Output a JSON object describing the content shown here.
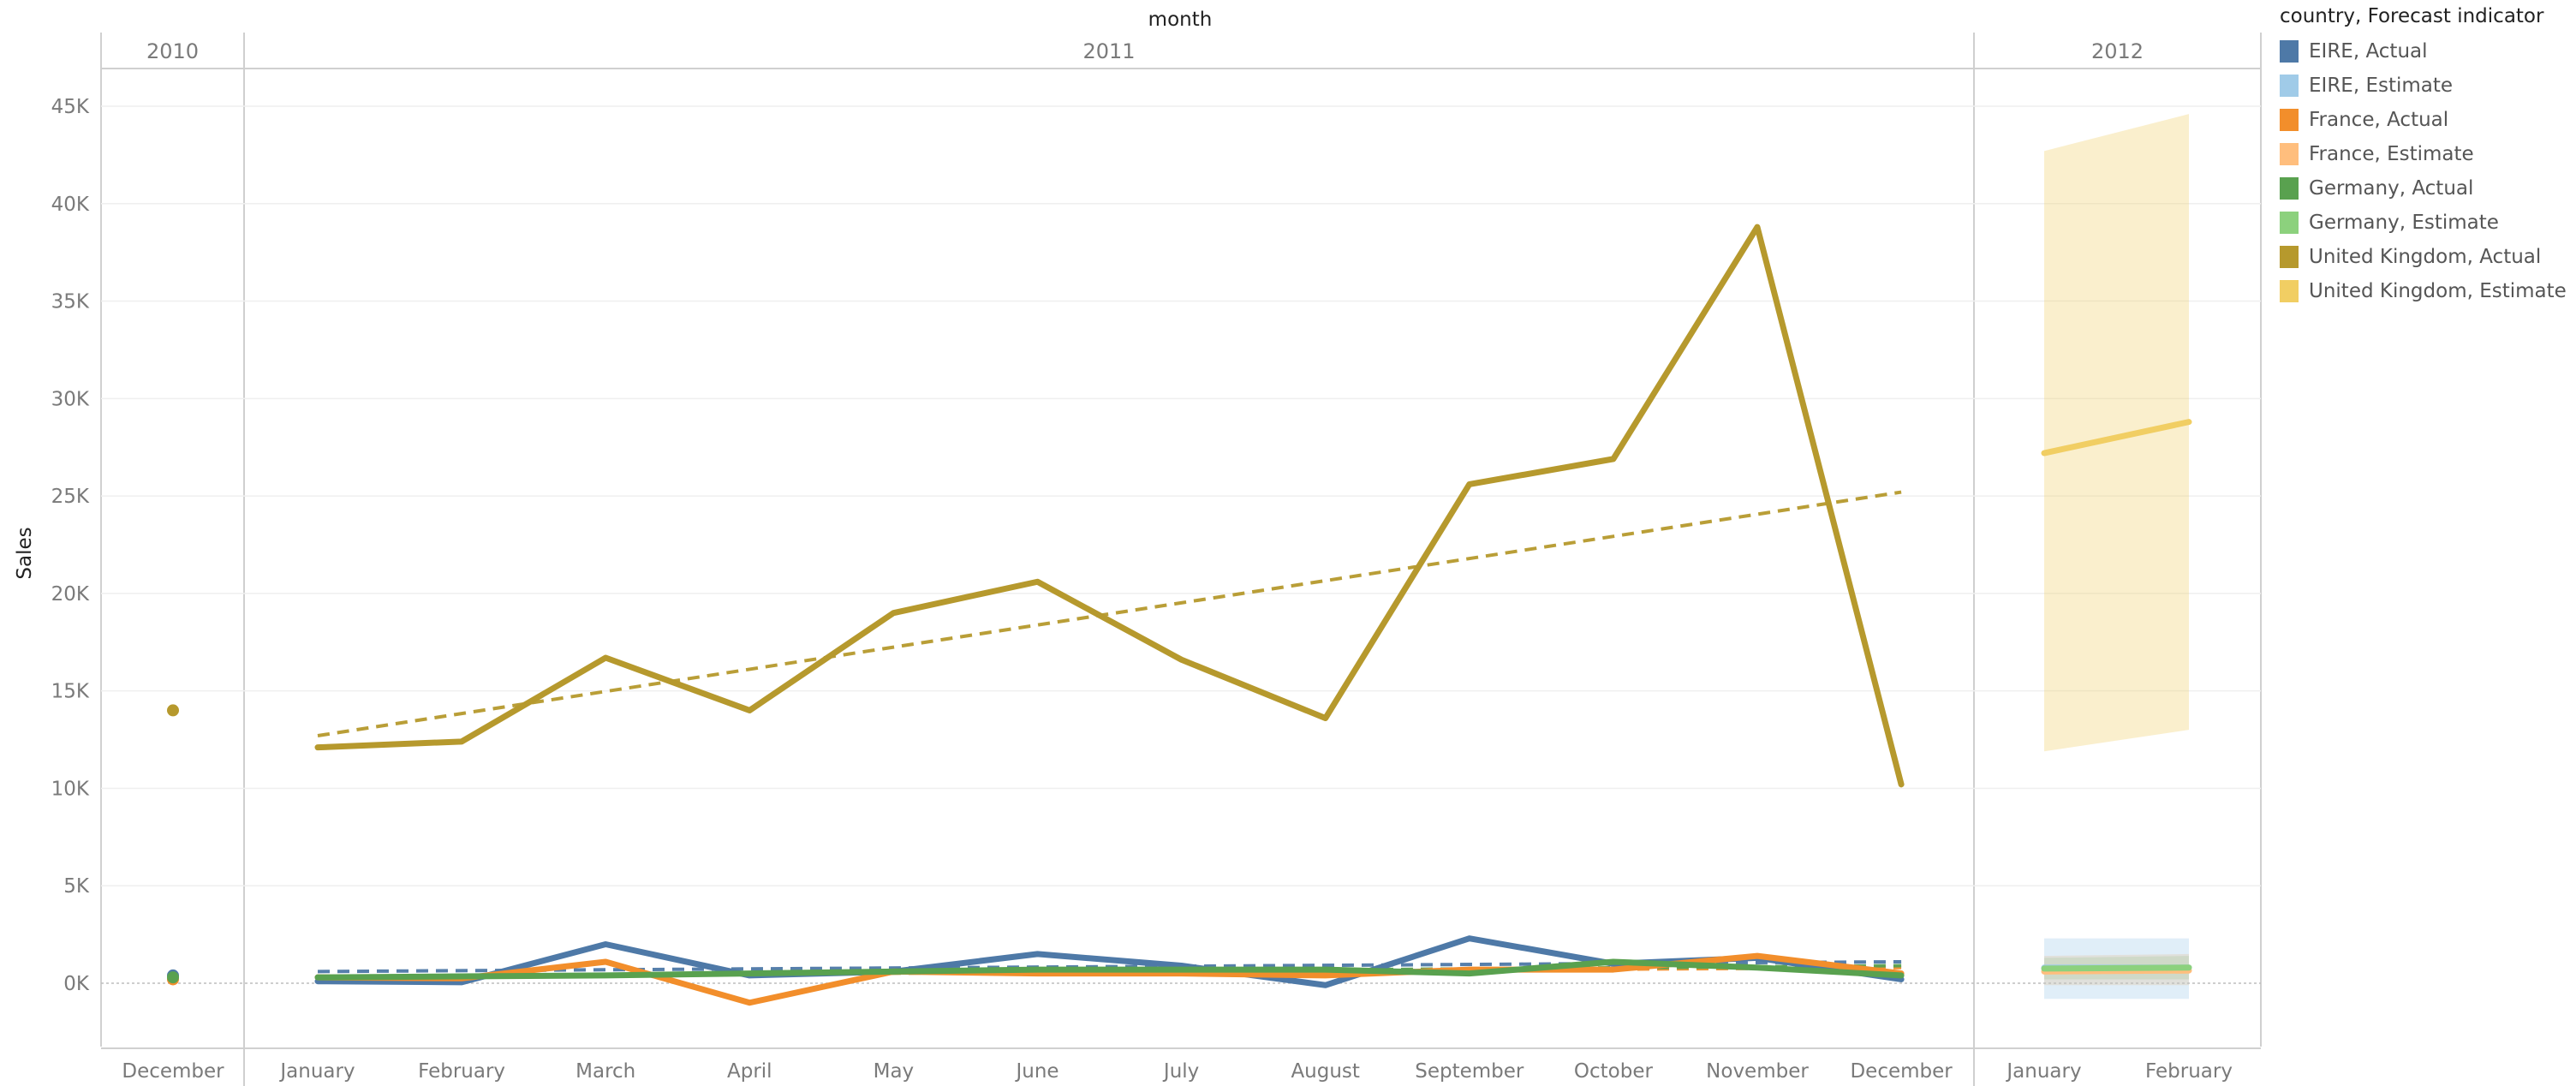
{
  "chart_data": {
    "type": "line",
    "title": "month",
    "ylabel": "Sales",
    "ylim": [
      -3000,
      47000
    ],
    "yticks": [
      0,
      5000,
      10000,
      15000,
      20000,
      25000,
      30000,
      35000,
      40000,
      45000
    ],
    "ytick_labels": [
      "0K",
      "5K",
      "10K",
      "15K",
      "20K",
      "25K",
      "30K",
      "35K",
      "40K",
      "45K"
    ],
    "grid": true,
    "years": [
      {
        "label": "2010",
        "months": [
          "December"
        ]
      },
      {
        "label": "2011",
        "months": [
          "January",
          "February",
          "March",
          "April",
          "May",
          "June",
          "July",
          "August",
          "September",
          "October",
          "November",
          "December"
        ]
      },
      {
        "label": "2012",
        "months": [
          "January",
          "February"
        ]
      }
    ],
    "legend": {
      "title": "country, Forecast indicator",
      "position": "right",
      "entries": [
        {
          "label": "EIRE, Actual",
          "color": "#4e79a7"
        },
        {
          "label": "EIRE, Estimate",
          "color": "#a0cbe8"
        },
        {
          "label": "France, Actual",
          "color": "#f28e2b"
        },
        {
          "label": "France, Estimate",
          "color": "#ffbe7d"
        },
        {
          "label": "Germany, Actual",
          "color": "#59a14f"
        },
        {
          "label": "Germany, Estimate",
          "color": "#8cd17d"
        },
        {
          "label": "United Kingdom, Actual",
          "color": "#b6992d"
        },
        {
          "label": "United Kingdom, Estimate",
          "color": "#f1ce63"
        }
      ]
    },
    "series": [
      {
        "name": "EIRE, Actual",
        "color": "#4e79a7",
        "dec2010": 400,
        "values2011": [
          100,
          50,
          2000,
          400,
          600,
          1500,
          900,
          -100,
          2300,
          1000,
          1300,
          200
        ],
        "trend": [
          600,
          1100
        ]
      },
      {
        "name": "France, Actual",
        "color": "#f28e2b",
        "dec2010": 200,
        "values2011": [
          300,
          250,
          1100,
          -1000,
          600,
          500,
          500,
          400,
          700,
          700,
          1400,
          500
        ],
        "trend": [
          350,
          800
        ]
      },
      {
        "name": "Germany, Actual",
        "color": "#59a14f",
        "dec2010": 300,
        "values2011": [
          300,
          350,
          400,
          500,
          600,
          700,
          700,
          700,
          500,
          1100,
          800,
          400
        ],
        "trend": [
          300,
          900
        ]
      },
      {
        "name": "United Kingdom, Actual",
        "color": "#b6992d",
        "dec2010": 14000,
        "values2011": [
          12100,
          12400,
          16700,
          14000,
          19000,
          20600,
          16600,
          13600,
          25600,
          26900,
          38800,
          10200
        ],
        "trend": [
          12700,
          25200
        ]
      }
    ],
    "estimates_2012": [
      {
        "name": "EIRE, Estimate",
        "color": "#a0cbe8",
        "values": [
          800,
          800
        ],
        "lower": [
          -800,
          -800
        ],
        "upper": [
          2300,
          2300
        ]
      },
      {
        "name": "France, Estimate",
        "color": "#ffbe7d",
        "values": [
          600,
          650
        ],
        "lower": [
          -100,
          -100
        ],
        "upper": [
          1400,
          1500
        ]
      },
      {
        "name": "Germany, Estimate",
        "color": "#8cd17d",
        "values": [
          750,
          800
        ],
        "lower": [
          200,
          200
        ],
        "upper": [
          1300,
          1400
        ]
      },
      {
        "name": "United Kingdom, Estimate",
        "color": "#f1ce63",
        "values": [
          27200,
          28800
        ],
        "lower": [
          11900,
          13000
        ],
        "upper": [
          42700,
          44600
        ]
      }
    ]
  }
}
